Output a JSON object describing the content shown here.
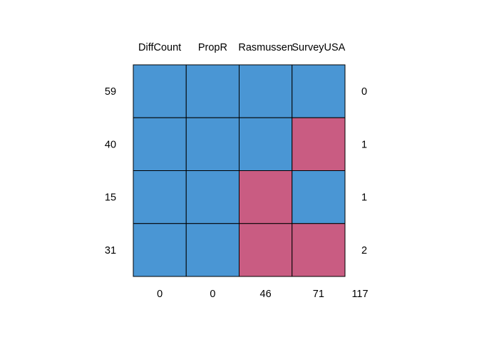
{
  "chart_data": {
    "type": "heatmap",
    "title": "",
    "xlabel": "",
    "ylabel": "",
    "columns": [
      "DiffCount",
      "PropR",
      "Rasmussen",
      "SurveyUSA"
    ],
    "rows": [
      {
        "count": "59",
        "missing_per_row": "0",
        "pattern": [
          1,
          1,
          1,
          1
        ]
      },
      {
        "count": "40",
        "missing_per_row": "1",
        "pattern": [
          1,
          1,
          1,
          0
        ]
      },
      {
        "count": "15",
        "missing_per_row": "1",
        "pattern": [
          1,
          1,
          0,
          1
        ]
      },
      {
        "count": "31",
        "missing_per_row": "2",
        "pattern": [
          1,
          1,
          0,
          0
        ]
      }
    ],
    "missing_per_column": [
      "0",
      "0",
      "46",
      "71"
    ],
    "total_missing": "117",
    "colors": {
      "observed": "#4a96d4",
      "missing": "#c95c82",
      "grid": "#000000"
    }
  }
}
